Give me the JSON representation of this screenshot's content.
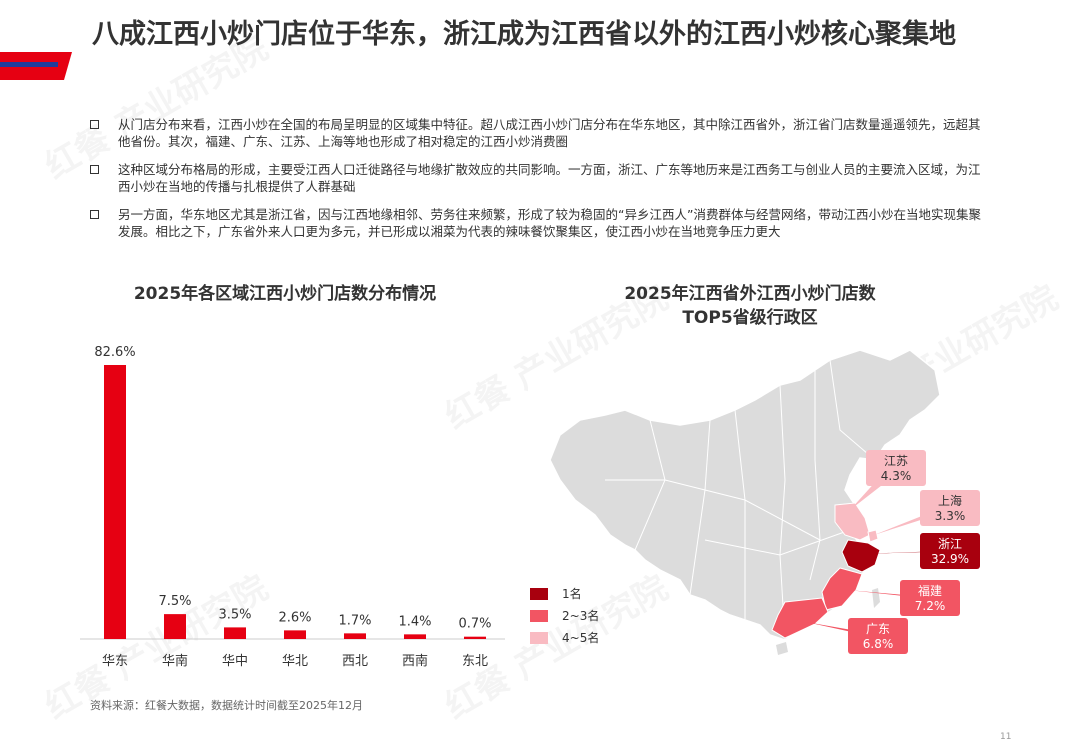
{
  "page": {
    "title": "八成江西小炒门店位于华东，浙江成为江西省以外的江西小炒核心聚集地",
    "bullets": [
      "从门店分布来看，江西小炒在全国的布局呈明显的区域集中特征。超八成江西小炒门店分布在华东地区，其中除江西省外，浙江省门店数量遥遥领先，远超其他省份。其次，福建、广东、江苏、上海等地也形成了相对稳定的江西小炒消费圈",
      "这种区域分布格局的形成，主要受江西人口迁徙路径与地缘扩散效应的共同影响。一方面，浙江、广东等地历来是江西务工与创业人员的主要流入区域，为江西小炒在当地的传播与扎根提供了人群基础",
      "另一方面，华东地区尤其是浙江省，因与江西地缘相邻、劳务往来频繁，形成了较为稳固的“异乡江西人”消费群体与经营网络，带动江西小炒在当地实现集聚发展。相比之下，广东省外来人口更为多元，并已形成以湘菜为代表的辣味餐饮聚集区，使江西小炒在当地竞争压力更大"
    ],
    "source": "资料来源：红餐大数据，数据统计时间截至2025年12月",
    "page_number": "11",
    "watermark": "红餐 产业研究院"
  },
  "colors": {
    "accent_red": "#E60012",
    "dark_red": "#A8000E",
    "mid_red": "#F25563",
    "light_pink": "#F9BBC2",
    "map_gray": "#DCDCDC",
    "blue": "#1F3C9A"
  },
  "chart_data": [
    {
      "type": "bar",
      "title": "2025年各区域江西小炒门店数分布情况",
      "categories": [
        "华东",
        "华南",
        "华中",
        "华北",
        "西北",
        "西南",
        "东北"
      ],
      "values": [
        82.6,
        7.5,
        3.5,
        2.6,
        1.7,
        1.4,
        0.7
      ],
      "value_labels": [
        "82.6%",
        "7.5%",
        "3.5%",
        "2.6%",
        "1.7%",
        "1.4%",
        "0.7%"
      ],
      "unit": "%",
      "ylim": [
        0,
        82.6
      ],
      "color": "#E60012",
      "grid": false
    },
    {
      "type": "map",
      "title": "2025年江西省外江西小炒门店数TOP5省级行政区",
      "regions": [
        {
          "name": "浙江",
          "value": 32.9,
          "label": "32.9%",
          "tier": "1名"
        },
        {
          "name": "福建",
          "value": 7.2,
          "label": "7.2%",
          "tier": "2~3名"
        },
        {
          "name": "广东",
          "value": 6.8,
          "label": "6.8%",
          "tier": "2~3名"
        },
        {
          "name": "江苏",
          "value": 4.3,
          "label": "4.3%",
          "tier": "4~5名"
        },
        {
          "name": "上海",
          "value": 3.3,
          "label": "3.3%",
          "tier": "4~5名"
        }
      ],
      "legend": [
        {
          "label": "1名",
          "color": "#A8000E"
        },
        {
          "label": "2~3名",
          "color": "#F25563"
        },
        {
          "label": "4~5名",
          "color": "#F9BBC2"
        }
      ],
      "legend_position": "bottom-left"
    }
  ]
}
